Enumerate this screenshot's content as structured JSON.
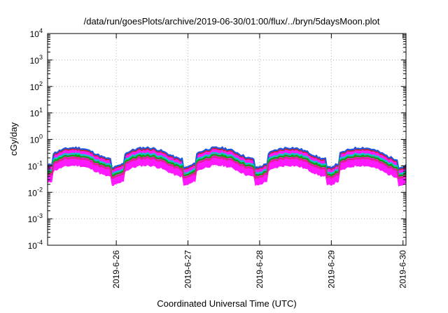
{
  "chart_data": {
    "type": "line",
    "title": "/data/run/goesPlots/archive/2019-06-30/01:00/flux/../bryn/5daysMoon.plot",
    "xlabel": "Coordinated Universal Time (UTC)",
    "ylabel": "cGy/day",
    "yscale": "log",
    "ylim": [
      0.0001,
      10000
    ],
    "xlim": [
      "2019-06-25 01:00",
      "2019-06-30 01:00"
    ],
    "grid": true,
    "legend": "none",
    "y_ticks": [
      {
        "base": "10",
        "exp": "-4"
      },
      {
        "base": "10",
        "exp": "-3"
      },
      {
        "base": "10",
        "exp": "-2"
      },
      {
        "base": "10",
        "exp": "-1"
      },
      {
        "base": "10",
        "exp": "0"
      },
      {
        "base": "10",
        "exp": "1"
      },
      {
        "base": "10",
        "exp": "2"
      },
      {
        "base": "10",
        "exp": "3"
      },
      {
        "base": "10",
        "exp": "4"
      }
    ],
    "x_ticks": [
      {
        "label": "2019-6-26",
        "x": "2019-06-26 00:00"
      },
      {
        "label": "2019-6-27",
        "x": "2019-06-27 00:00"
      },
      {
        "label": "2019-6-28",
        "x": "2019-06-28 00:00"
      },
      {
        "label": "2019-6-29",
        "x": "2019-06-29 00:00"
      },
      {
        "label": "2019-6-30",
        "x": "2019-06-30 00:00"
      }
    ],
    "series": [
      {
        "color": "#ff00ff",
        "values": [
          0.07,
          0.05,
          0.045,
          0.055,
          0.07,
          0.06,
          0.045
        ]
      },
      {
        "color": "#cc2222",
        "values": [
          0.22,
          0.16,
          0.12,
          0.3,
          0.4,
          0.17,
          0.09
        ]
      },
      {
        "color": "#2255dd",
        "values": [
          0.26,
          0.19,
          0.13,
          0.33,
          0.42,
          0.19,
          0.1
        ]
      },
      {
        "color": "#00cccc",
        "values": [
          0.18,
          0.13,
          0.1,
          0.2,
          0.27,
          0.14,
          0.08
        ]
      },
      {
        "color": "#00aa00",
        "values": [
          0.16,
          0.12,
          0.09,
          0.17,
          0.22,
          0.12,
          0.075
        ]
      },
      {
        "color": "#dd2288",
        "values": [
          0.14,
          0.11,
          0.085,
          0.15,
          0.18,
          0.11,
          0.07
        ]
      }
    ],
    "envelope_color": "#ff00ff"
  }
}
